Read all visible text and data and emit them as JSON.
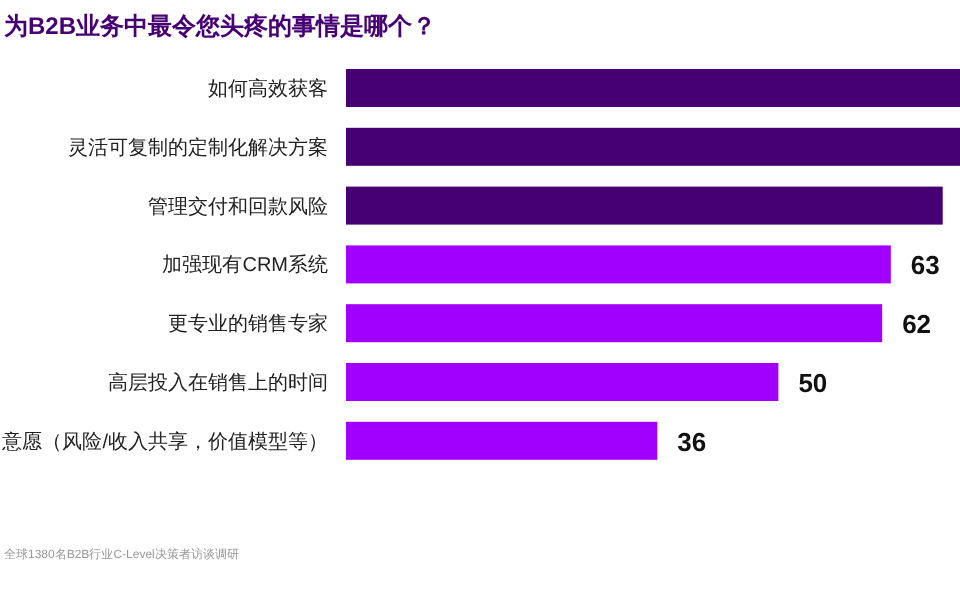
{
  "chart_data": {
    "type": "bar",
    "orientation": "horizontal",
    "title": "为B2B业务中最令您头疼的事情是哪个？",
    "categories": [
      "如何高效获客",
      "灵活可复制的定制化解决方案",
      "管理交付和回款风险",
      "加强现有CRM系统",
      "更专业的销售专家",
      "高层投入在销售上的时间",
      "意愿（风险/收入共享，价值模型等）"
    ],
    "values": [
      71,
      71,
      69,
      63,
      62,
      50,
      36
    ],
    "colors": [
      "#460073",
      "#460073",
      "#460073",
      "#a100ff",
      "#a100ff",
      "#a100ff",
      "#a100ff"
    ],
    "value_labels": [
      null,
      null,
      null,
      "63",
      "62",
      "50",
      "36"
    ],
    "xlim": [
      0,
      71
    ],
    "tick_labels": "y",
    "annotations": [
      "全球1380名B2B行业C-Level决策者访谈调研"
    ]
  }
}
